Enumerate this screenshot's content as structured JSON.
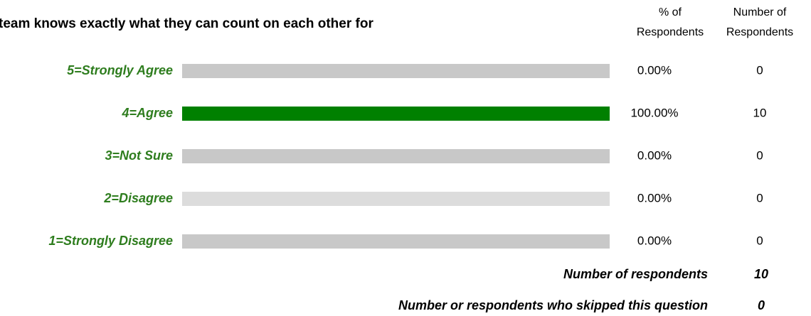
{
  "chart_data": {
    "type": "bar",
    "orientation": "horizontal",
    "title": "team knows exactly what they can count on each other for",
    "column_headers": [
      [
        "% of",
        "Respondents"
      ],
      [
        "Number of",
        "Respondents"
      ]
    ],
    "categories": [
      "5=Strongly Agree",
      "4=Agree",
      "3=Not Sure",
      "2=Disagree",
      "1=Strongly Disagree"
    ],
    "values": [
      0,
      100,
      0,
      0,
      0
    ],
    "value_labels": [
      "0.00%",
      "100.00%",
      "0.00%",
      "0.00%",
      "0.00%"
    ],
    "counts": [
      0,
      10,
      0,
      0,
      0
    ],
    "color": "#008000",
    "track_colors": [
      "#c8c8c8",
      "#c8c8c8",
      "#c8c8c8",
      "#dcdcdc",
      "#c8c8c8"
    ],
    "label_color": "#2e7d1e",
    "xlim": [
      0,
      100
    ],
    "summary": [
      {
        "label": "Number of respondents",
        "value": 10
      },
      {
        "label": "Number or respondents who skipped this question",
        "value": 0
      }
    ]
  }
}
